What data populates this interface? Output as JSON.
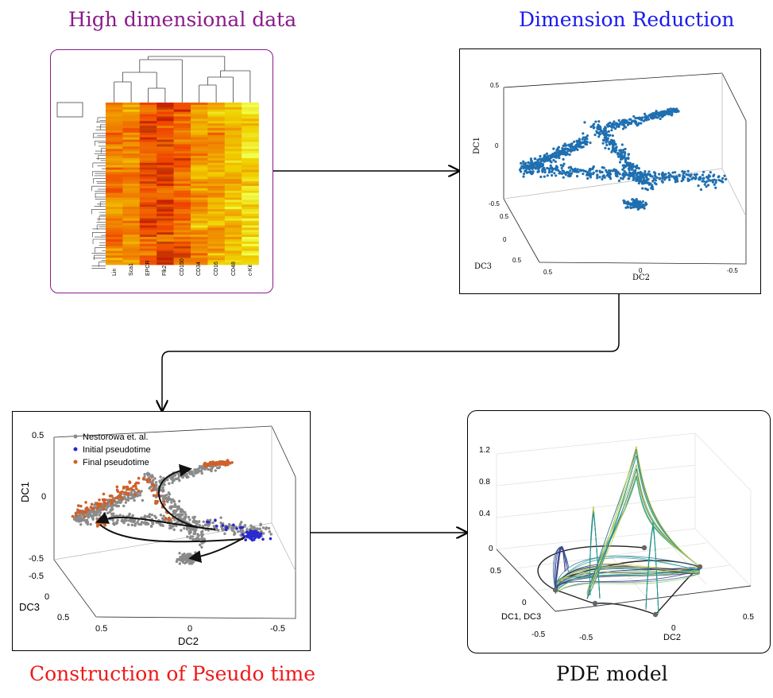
{
  "titles": {
    "high_dim": "High dimensional data",
    "dim_reduction": "Dimension Reduction",
    "pseudotime": "Construction of Pseudo time",
    "pde": "PDE model"
  },
  "colors": {
    "high_dim": "#8b1a8b",
    "dim_reduction": "#1a1aee",
    "pseudotime": "#ee1a1a",
    "pde": "#111111",
    "scatter_blue": "#1f6fb0",
    "gray_points": "#8a8a8a",
    "initial_points": "#2a2ad0",
    "final_points": "#d0602a"
  },
  "heatmap": {
    "markers": [
      "Lin",
      "Sca1",
      "EPCR",
      "Flk2",
      "CD150",
      "CD34",
      "CD16",
      "CD48",
      "c-Kit"
    ]
  },
  "dr_plot": {
    "dc1_label": "DC1",
    "dc2_label": "DC2",
    "dc3_label": "DC3",
    "z_ticks": [
      "0.5",
      "0",
      "-0.5"
    ],
    "dc3_ticks": [
      "0.5",
      "0",
      "0.5"
    ],
    "dc2_ticks": [
      "0.5",
      "0",
      "-0.5"
    ]
  },
  "pt_plot": {
    "dc1_label": "DC1",
    "dc2_label": "DC2",
    "dc3_label": "DC3",
    "z_ticks": [
      "0.5",
      "0",
      "-0.5"
    ],
    "dc3_ticks": [
      "-0.5",
      "0",
      "0.5"
    ],
    "dc2_ticks": [
      "0.5",
      "0",
      "-0.5"
    ],
    "legend": [
      "Nestorowa et. al.",
      "Initial pseudotime",
      "Final pseudotime"
    ]
  },
  "pde_plot": {
    "z_ticks": [
      "1.2",
      "0.8",
      "0.4",
      "0"
    ],
    "dc13_label": "DC1, DC3",
    "dc2_label": "DC2",
    "dc13_ticks": [
      "0.5",
      "0",
      "-0.5"
    ],
    "dc2_ticks": [
      "-0.5",
      "0",
      "0.5"
    ]
  }
}
